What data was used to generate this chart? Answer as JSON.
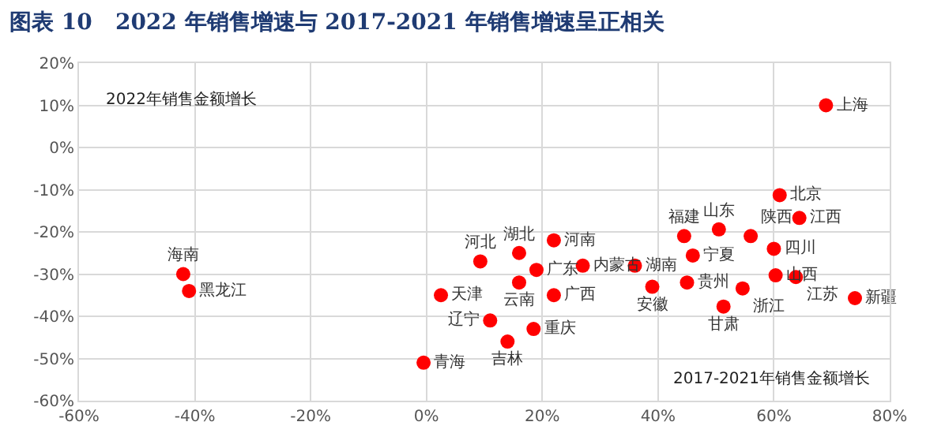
{
  "chart_data": {
    "type": "scatter",
    "title": "图表 10   2022 年销售增速与 2017-2021 年销售增速呈正相关",
    "xlabel": "2017-2021年销售金额增长",
    "ylabel": "2022年销售金额增长",
    "series": [
      {
        "color": "#ff0000",
        "x": [
          -42,
          -41,
          2.5,
          -0.5,
          9.3,
          16,
          22,
          19,
          22,
          16,
          11,
          18.5,
          14,
          27,
          36,
          39,
          45,
          44.5,
          46,
          50.5,
          56,
          61,
          64.4,
          60,
          54.6,
          51.3,
          60.3,
          63.8,
          74,
          69
        ],
        "values": [
          -30,
          -34,
          -35,
          -51,
          -27,
          -25,
          -22,
          -29,
          -35,
          -32,
          -41,
          -43,
          -46,
          -28,
          -28,
          -33,
          -32,
          -21,
          -25.6,
          -19.4,
          -21,
          -11.3,
          -16.7,
          -24,
          -33.4,
          -37.7,
          -30.3,
          -30.7,
          -35.7,
          10
        ],
        "value_labels": [
          "海南",
          "黑龙江",
          "天津",
          "青海",
          "河北",
          "湖北",
          "河南",
          "广东",
          "广西",
          "云南",
          "辽宁",
          "重庆",
          "吉林",
          "内蒙古",
          "湖南",
          "安徽",
          "贵州",
          "福建",
          "宁夏",
          "山东",
          "陕西",
          "北京",
          "江西",
          "四川",
          "浙江",
          "甘肃",
          "山西",
          "江苏",
          "新疆",
          "上海"
        ]
      }
    ],
    "marker": "circle",
    "grid": true,
    "xlim": [
      -60,
      80
    ],
    "xticks": [
      {
        "value": -60,
        "label": "-60%"
      },
      {
        "value": -40,
        "label": "-40%"
      },
      {
        "value": -20,
        "label": "-20%"
      },
      {
        "value": 0,
        "label": "0%"
      },
      {
        "value": 20,
        "label": "20%"
      },
      {
        "value": 40,
        "label": "40%"
      },
      {
        "value": 60,
        "label": "60%"
      },
      {
        "value": 80,
        "label": "80%"
      }
    ],
    "ylim": [
      -60,
      20
    ],
    "yticks": [
      {
        "value": -60,
        "label": "-60%"
      },
      {
        "value": -50,
        "label": "-50%"
      },
      {
        "value": -40,
        "label": "-40%"
      },
      {
        "value": -30,
        "label": "-30%"
      },
      {
        "value": -20,
        "label": "-20%"
      },
      {
        "value": -10,
        "label": "-10%"
      },
      {
        "value": 0,
        "label": "0%"
      },
      {
        "value": 10,
        "label": "10%"
      },
      {
        "value": 20,
        "label": "20%"
      }
    ]
  }
}
